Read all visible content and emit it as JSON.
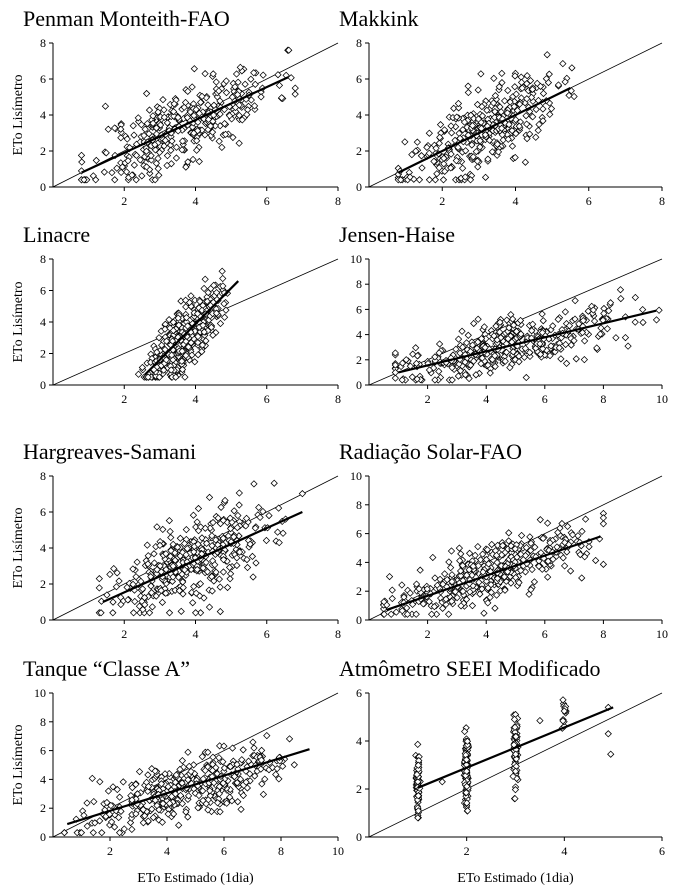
{
  "chart_data": [
    {
      "type": "scatter",
      "title": "Penman Monteith-FAO",
      "ylabel": "ETo Lisímetro",
      "xlabel": "",
      "xlim": [
        0,
        8
      ],
      "ylim": [
        0,
        8
      ],
      "xticks": [
        2,
        4,
        6,
        8
      ],
      "yticks": [
        0,
        2,
        4,
        6,
        8
      ],
      "reference_line": {
        "name": "1:1",
        "from": [
          0,
          0
        ],
        "to": [
          8,
          8
        ]
      },
      "regression_line": {
        "from": [
          0.8,
          0.8
        ],
        "to": [
          6.6,
          6.1
        ]
      },
      "clouds": [
        {
          "n": 380,
          "seed": 11,
          "xmin": 0.8,
          "xmax": 6.8,
          "xmean": 3.7,
          "xsd": 1.25,
          "slope": 0.91,
          "intercept": 0.1,
          "noise": 1.05,
          "ymin": 0.4,
          "ymax": 7.6
        }
      ]
    },
    {
      "type": "scatter",
      "title": "Makkink",
      "ylabel": "",
      "xlabel": "",
      "xlim": [
        0,
        8
      ],
      "ylim": [
        0,
        8
      ],
      "xticks": [
        2,
        4,
        6,
        8
      ],
      "yticks": [
        0,
        2,
        4,
        6,
        8
      ],
      "reference_line": {
        "name": "1:1",
        "from": [
          0,
          0
        ],
        "to": [
          8,
          8
        ]
      },
      "regression_line": {
        "from": [
          0.8,
          0.8
        ],
        "to": [
          5.5,
          5.5
        ]
      },
      "clouds": [
        {
          "n": 380,
          "seed": 23,
          "xmin": 0.8,
          "xmax": 5.6,
          "xmean": 3.1,
          "xsd": 1.0,
          "slope": 1.0,
          "intercept": 0.0,
          "noise": 1.05,
          "ymin": 0.4,
          "ymax": 7.6
        }
      ]
    },
    {
      "type": "scatter",
      "title": "Linacre",
      "ylabel": "ETo Lisímetro",
      "xlabel": "",
      "xlim": [
        0,
        8
      ],
      "ylim": [
        0,
        8
      ],
      "xticks": [
        2,
        4,
        6,
        8
      ],
      "yticks": [
        0,
        2,
        4,
        6,
        8
      ],
      "reference_line": {
        "name": "1:1",
        "from": [
          0,
          0
        ],
        "to": [
          8,
          8
        ]
      },
      "regression_line": {
        "from": [
          2.6,
          0.7
        ],
        "to": [
          5.2,
          6.6
        ]
      },
      "clouds": [
        {
          "n": 420,
          "seed": 37,
          "xmin": 2.4,
          "xmax": 5.5,
          "xmean": 3.7,
          "xsd": 0.5,
          "slope": 2.2,
          "intercept": -5.0,
          "noise": 1.0,
          "ymin": 0.5,
          "ymax": 7.6
        }
      ]
    },
    {
      "type": "scatter",
      "title": "Jensen-Haise",
      "ylabel": "",
      "xlabel": "",
      "xlim": [
        0,
        10
      ],
      "ylim": [
        0,
        10
      ],
      "xticks": [
        2,
        4,
        6,
        8,
        10
      ],
      "yticks": [
        0,
        2,
        4,
        6,
        8,
        10
      ],
      "reference_line": {
        "name": "1:1",
        "from": [
          0,
          0
        ],
        "to": [
          10,
          10
        ]
      },
      "regression_line": {
        "from": [
          1.0,
          1.0
        ],
        "to": [
          9.8,
          5.9
        ]
      },
      "clouds": [
        {
          "n": 420,
          "seed": 41,
          "xmin": 0.9,
          "xmax": 9.9,
          "xmean": 4.8,
          "xsd": 2.0,
          "slope": 0.56,
          "intercept": 0.45,
          "noise": 1.0,
          "ymin": 0.4,
          "ymax": 8.5
        }
      ]
    },
    {
      "type": "scatter",
      "title": "Hargreaves-Samani",
      "ylabel": "ETo Lisímetro",
      "xlabel": "",
      "xlim": [
        0,
        8
      ],
      "ylim": [
        0,
        8
      ],
      "xticks": [
        2,
        4,
        6,
        8
      ],
      "yticks": [
        0,
        2,
        4,
        6,
        8
      ],
      "reference_line": {
        "name": "1:1",
        "from": [
          0,
          0
        ],
        "to": [
          8,
          8
        ]
      },
      "regression_line": {
        "from": [
          1.4,
          1.0
        ],
        "to": [
          7.0,
          6.0
        ]
      },
      "clouds": [
        {
          "n": 400,
          "seed": 53,
          "xmin": 1.3,
          "xmax": 7.0,
          "xmean": 4.0,
          "xsd": 1.2,
          "slope": 0.9,
          "intercept": -0.3,
          "noise": 1.15,
          "ymin": 0.4,
          "ymax": 7.6
        }
      ]
    },
    {
      "type": "scatter",
      "title": "Radiação Solar-FAO",
      "ylabel": "",
      "xlabel": "",
      "xlim": [
        0,
        10
      ],
      "ylim": [
        0,
        10
      ],
      "xticks": [
        2,
        4,
        6,
        8,
        10
      ],
      "yticks": [
        0,
        2,
        4,
        6,
        8,
        10
      ],
      "reference_line": {
        "name": "1:1",
        "from": [
          0,
          0
        ],
        "to": [
          10,
          10
        ]
      },
      "regression_line": {
        "from": [
          0.6,
          0.7
        ],
        "to": [
          7.9,
          5.8
        ]
      },
      "clouds": [
        {
          "n": 420,
          "seed": 67,
          "xmin": 0.5,
          "xmax": 8.0,
          "xmean": 4.0,
          "xsd": 1.6,
          "slope": 0.7,
          "intercept": 0.3,
          "noise": 0.95,
          "ymin": 0.4,
          "ymax": 8.5
        }
      ]
    },
    {
      "type": "scatter",
      "title": "Tanque “Classe A”",
      "ylabel": "ETo Lisímetro",
      "xlabel": "ETo Estimado (1dia)",
      "xlim": [
        0,
        10
      ],
      "ylim": [
        0,
        10
      ],
      "xticks": [
        2,
        4,
        6,
        8,
        10
      ],
      "yticks": [
        0,
        2,
        4,
        6,
        8,
        10
      ],
      "reference_line": {
        "name": "1:1",
        "from": [
          0,
          0
        ],
        "to": [
          10,
          10
        ]
      },
      "regression_line": {
        "from": [
          0.5,
          0.9
        ],
        "to": [
          9.0,
          6.1
        ]
      },
      "clouds": [
        {
          "n": 420,
          "seed": 79,
          "xmin": 0.4,
          "xmax": 9.1,
          "xmean": 4.6,
          "xsd": 1.8,
          "slope": 0.6,
          "intercept": 0.6,
          "noise": 1.0,
          "ymin": 0.3,
          "ymax": 8.4
        }
      ]
    },
    {
      "type": "scatter",
      "title": "Atmômetro SEEI Modificado",
      "ylabel": "",
      "xlabel": "ETo Estimado (1dia)",
      "xlim": [
        0,
        6
      ],
      "ylim": [
        0,
        6
      ],
      "xticks": [
        2,
        4,
        6
      ],
      "yticks": [
        0,
        2,
        4,
        6
      ],
      "reference_line": {
        "name": "1:1",
        "from": [
          0,
          0
        ],
        "to": [
          6,
          6
        ]
      },
      "regression_line": {
        "from": [
          1.0,
          2.05
        ],
        "to": [
          5.0,
          5.4
        ]
      },
      "clouds": [
        {
          "n": 70,
          "seed": 3,
          "xmin": 0.95,
          "xmax": 1.05,
          "xmean": 1.0,
          "xsd": 0.02,
          "slope": 0,
          "intercept": 2.1,
          "noise": 0.75,
          "ymin": 0.8,
          "ymax": 3.95
        },
        {
          "n": 110,
          "seed": 5,
          "xmin": 1.95,
          "xmax": 2.05,
          "xmean": 2.0,
          "xsd": 0.02,
          "slope": 0,
          "intercept": 2.8,
          "noise": 0.75,
          "ymin": 1.0,
          "ymax": 4.6
        },
        {
          "n": 80,
          "seed": 7,
          "xmin": 2.95,
          "xmax": 3.05,
          "xmean": 3.0,
          "xsd": 0.02,
          "slope": 0,
          "intercept": 3.6,
          "noise": 0.8,
          "ymin": 1.6,
          "ymax": 5.6
        },
        {
          "n": 14,
          "seed": 9,
          "xmin": 3.95,
          "xmax": 4.05,
          "xmean": 4.0,
          "xsd": 0.02,
          "slope": 0,
          "intercept": 5.1,
          "noise": 0.35,
          "ymin": 4.4,
          "ymax": 5.85
        }
      ],
      "points": [
        [
          1.5,
          2.3
        ],
        [
          3.5,
          4.85
        ],
        [
          4.9,
          5.4
        ],
        [
          4.95,
          3.45
        ],
        [
          4.9,
          4.3
        ]
      ]
    }
  ]
}
